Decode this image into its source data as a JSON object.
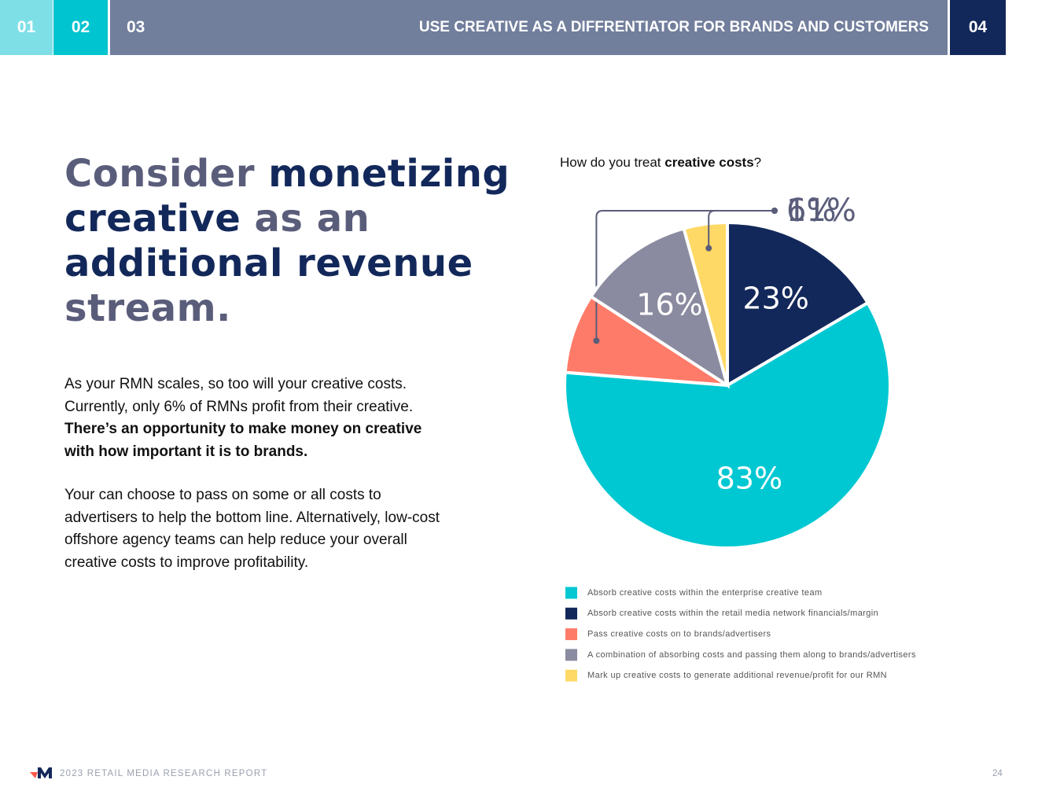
{
  "header": {
    "tabs": [
      "01",
      "02",
      "03",
      "04"
    ],
    "title": "USE CREATIVE AS A DIFFRENTIATOR FOR BRANDS AND CUSTOMERS"
  },
  "headline": [
    "Consider ",
    "monetizing",
    " creative",
    " as an",
    " additional revenue",
    " stream."
  ],
  "body": {
    "paragraph_1": [
      "As your RMN scales, so too will your creative costs. Currently, only 6% of RMNs profit from their creative. ",
      "There’s an opportunity to make money on creative with how important it is to brands."
    ],
    "paragraph_2": "Your can choose to pass on some or all costs to advertisers to help the bottom line. Alternatively, low-cost offshore agency teams can help reduce your overall creative costs to improve profitability."
  },
  "chart_data": {
    "type": "pie",
    "title": [
      "How do you treat ",
      "creative costs",
      "?"
    ],
    "categories": [
      "Absorb creative costs within the enterprise creative team",
      "Absorb creative costs within the retail media network financials/margin",
      "Pass creative costs on to brands/advertisers",
      "A combination of absorbing costs and passing them along to brands/advertisers",
      "Mark up creative costs to generate additional revenue/profit for our RMN"
    ],
    "values": [
      83,
      23,
      11,
      16,
      6
    ],
    "value_labels": [
      "83%",
      "23%",
      "11%",
      "16%",
      "6%"
    ],
    "colors": [
      "#00c8d2",
      "#13285a",
      "#ff7b69",
      "#8a8aa0",
      "#ffd966"
    ]
  },
  "footer": {
    "text": "2023 RETAIL MEDIA RESEARCH REPORT",
    "page": "24"
  }
}
